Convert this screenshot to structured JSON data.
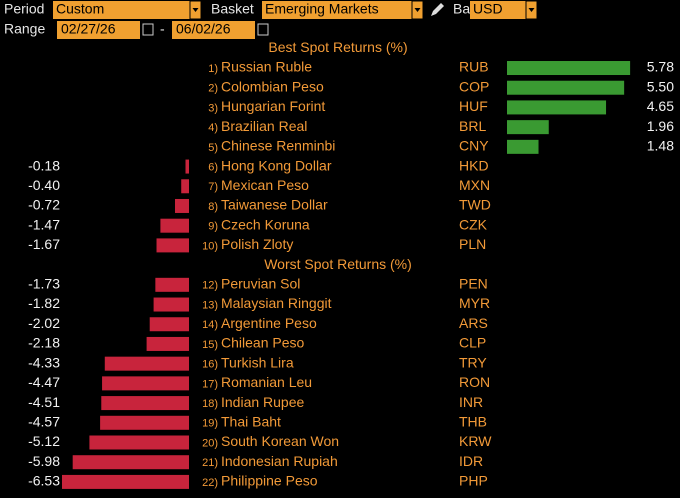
{
  "header": {
    "period_label": "Period",
    "period": "Custom",
    "basket_label": "Basket",
    "basket": "Emerging Markets",
    "base_label": "Base",
    "base": "USD",
    "range_label": "Range",
    "start": "02/27/26",
    "separator": "-",
    "end": "06/02/26"
  },
  "chart_data": {
    "type": "bar",
    "positive_color": "#3a9a32",
    "negative_color": "#c8243c",
    "sections": [
      {
        "title": "Best Spot Returns (%)",
        "ranks": [
          "1)",
          "2)",
          "3)",
          "4)",
          "5)",
          "6)",
          "7)",
          "8)",
          "9)",
          "10)"
        ],
        "categories": [
          "Russian Ruble",
          "Colombian Peso",
          "Hungarian Forint",
          "Brazilian Real",
          "Chinese Renminbi",
          "Hong Kong Dollar",
          "Mexican Peso",
          "Taiwanese Dollar",
          "Czech Koruna",
          "Polish Zloty"
        ],
        "codes": [
          "RUB",
          "COP",
          "HUF",
          "BRL",
          "CNY",
          "HKD",
          "MXN",
          "TWD",
          "CZK",
          "PLN"
        ],
        "values": [
          5.78,
          5.5,
          4.65,
          1.96,
          1.48,
          -0.18,
          -0.4,
          -0.72,
          -1.47,
          -1.67
        ],
        "value_labels": [
          "5.78",
          "5.50",
          "4.65",
          "1.96",
          "1.48",
          "-0.18",
          "-0.40",
          "-0.72",
          "-1.47",
          "-1.67"
        ]
      },
      {
        "title": "Worst Spot Returns (%)",
        "ranks": [
          "12)",
          "13)",
          "14)",
          "15)",
          "16)",
          "17)",
          "18)",
          "19)",
          "20)",
          "21)",
          "22)"
        ],
        "categories": [
          "Peruvian Sol",
          "Malaysian Ringgit",
          "Argentine Peso",
          "Chilean Peso",
          "Turkish Lira",
          "Romanian Leu",
          "Indian Rupee",
          "Thai Baht",
          "South Korean Won",
          "Indonesian Rupiah",
          "Philippine Peso"
        ],
        "codes": [
          "PEN",
          "MYR",
          "ARS",
          "CLP",
          "TRY",
          "RON",
          "INR",
          "THB",
          "KRW",
          "IDR",
          "PHP"
        ],
        "values": [
          -1.73,
          -1.82,
          -2.02,
          -2.18,
          -4.33,
          -4.47,
          -4.51,
          -4.57,
          -5.12,
          -5.98,
          -6.53
        ],
        "value_labels": [
          "-1.73",
          "-1.82",
          "-2.02",
          "-2.18",
          "-4.33",
          "-4.47",
          "-4.51",
          "-4.57",
          "-5.12",
          "-5.98",
          "-6.53"
        ]
      }
    ]
  }
}
